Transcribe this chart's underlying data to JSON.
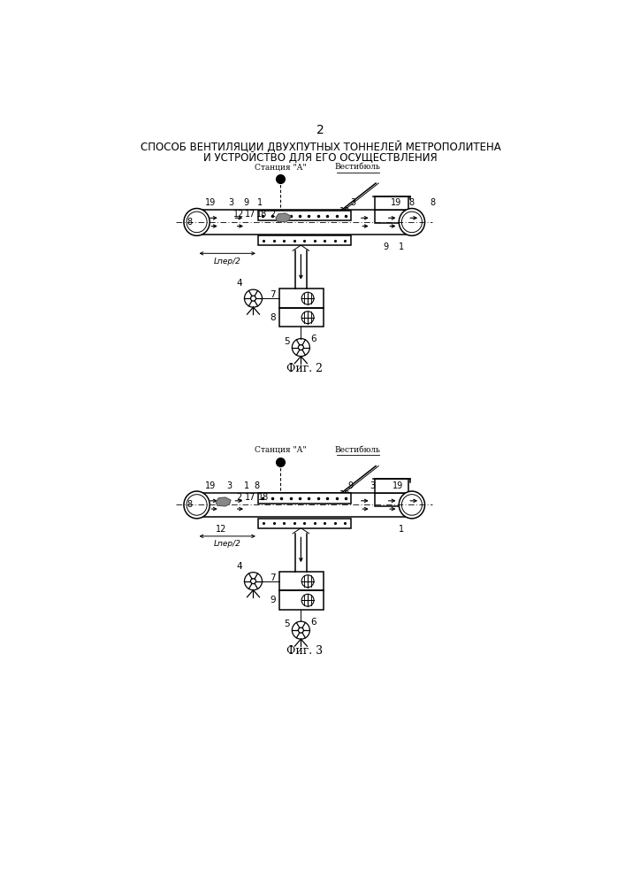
{
  "page_num": "2",
  "title_line1": "СПОСОБ ВЕНТИЛЯЦИИ ДВУХПУТНЫХ ТОННЕЛЕЙ МЕТРОПОЛИТЕНА",
  "title_line2": "И УСТРОЙСТВО ДЛЯ ЕГО ОСУЩЕСТВЛЕНИЯ",
  "fig2_label": "Фиг. 2",
  "fig3_label": "Фиг. 3",
  "station_label": "Станция \"А\"",
  "vestibule_label": "Вестибюль",
  "lper_label": "Lпер/2",
  "background": "#ffffff",
  "line_color": "#000000"
}
